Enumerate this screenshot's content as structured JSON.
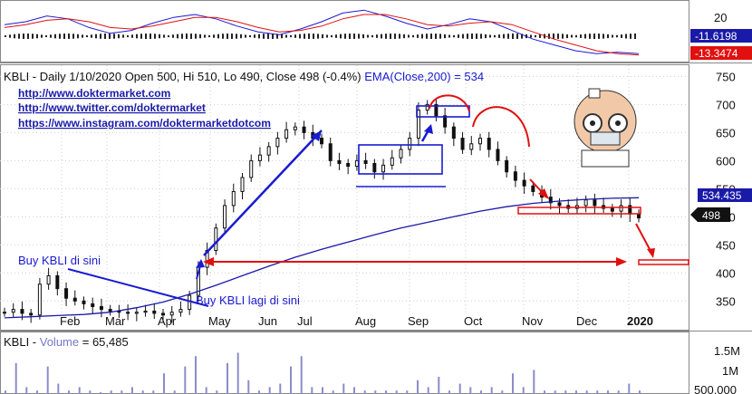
{
  "header": {
    "title": "KBLI - Daily 1/10/2020 Open 500, Hi 510, Lo 490, Close 498 (-0.4%)",
    "ema_label": "EMA(Close,200) = 534",
    "links": [
      "http://www.doktermarket.com",
      "http://www.twitter.com/doktermarket",
      "https://www.instagram.com/doktermarketdotcom"
    ]
  },
  "volume_title": {
    "prefix": "KBLI - ",
    "volume": "Volume",
    "value": " = 65,485"
  },
  "annotations": {
    "buy1": "Buy KBLI di sini",
    "buy2": "Buy KBLI lagi di sini"
  },
  "colors": {
    "accent": "#1a1ad0",
    "signal": "#e01010",
    "ema": "#1a1aa8",
    "price": "#111111"
  },
  "tags": {
    "macd1": "-11.6198",
    "macd2": "-13.3474",
    "ema": "534.435",
    "last": "498"
  },
  "chart_data": [
    {
      "type": "line",
      "panel": "MACD",
      "yticks": [
        20
      ],
      "series": [
        {
          "values": [
            8,
            10,
            14,
            12,
            6,
            2,
            4,
            9,
            13,
            15,
            12,
            7,
            3,
            1,
            5,
            10,
            16,
            18,
            14,
            9,
            5,
            8,
            12,
            10,
            4,
            -2,
            -6,
            -10,
            -12,
            -11,
            -12
          ]
        },
        {
          "values": [
            6,
            8,
            11,
            12,
            10,
            6,
            5,
            7,
            10,
            13,
            13,
            10,
            6,
            3,
            4,
            7,
            12,
            15,
            15,
            12,
            8,
            7,
            9,
            10,
            8,
            3,
            -2,
            -6,
            -10,
            -12,
            -13
          ]
        }
      ],
      "last_values": [
        -11.6198,
        -13.3474
      ]
    },
    {
      "type": "line",
      "panel": "price",
      "xlabels": [
        "Feb",
        "Mar",
        "Apr",
        "May",
        "Jun",
        "Jul",
        "Aug",
        "Sep",
        "Oct",
        "Nov",
        "Dec",
        "2020"
      ],
      "yticks": [
        350,
        400,
        450,
        500,
        550,
        600,
        650,
        700,
        750
      ],
      "ylim": [
        315,
        770
      ],
      "series": [
        {
          "name": "Close",
          "values": [
            330,
            335,
            328,
            325,
            380,
            395,
            372,
            355,
            350,
            345,
            340,
            335,
            332,
            330,
            328,
            330,
            332,
            328,
            325,
            330,
            335,
            360,
            410,
            440,
            480,
            520,
            545,
            570,
            600,
            610,
            625,
            640,
            655,
            660,
            650,
            640,
            630,
            600,
            595,
            590,
            600,
            595,
            580,
            592,
            605,
            620,
            640,
            690,
            700,
            680,
            660,
            640,
            620,
            630,
            640,
            620,
            600,
            580,
            565,
            555,
            545,
            535,
            525,
            520,
            515,
            520,
            530,
            520,
            515,
            510,
            520,
            505,
            498
          ]
        },
        {
          "name": "EMA(Close,200)",
          "values": [
            320,
            322,
            324,
            326,
            330,
            338,
            348,
            362,
            378,
            395,
            412,
            428,
            442,
            455,
            468,
            480,
            490,
            500,
            510,
            518,
            524,
            528,
            531,
            533,
            534
          ]
        }
      ],
      "last_values": [
        534.435,
        498
      ]
    },
    {
      "type": "bar",
      "panel": "volume",
      "yticks": [
        "500,000",
        "1M",
        "1.5M"
      ],
      "values": [
        0.1,
        0.9,
        0.2,
        0.1,
        0.8,
        0.3,
        0.1,
        0.2,
        0.1,
        0.05,
        0.1,
        0.1,
        0.2,
        0.1,
        0.1,
        0.6,
        0.1,
        0.8,
        1.1,
        0.2,
        0.1,
        0.9,
        1.2,
        0.4,
        0.1,
        0.2,
        0.3,
        0.8,
        1.1,
        0.2,
        0.2,
        0.1,
        0.3,
        0.2,
        0.1,
        0.1,
        0.1,
        0.1,
        0.1,
        0.4,
        0.2,
        0.5,
        0.1,
        0.3,
        0.2,
        0.1,
        0.2,
        0.1,
        0.6,
        0.2,
        0.7,
        0.1,
        0.1,
        0.1,
        0.1,
        0.1,
        0.1,
        0.1,
        0.1,
        0.3,
        0.1
      ]
    }
  ]
}
